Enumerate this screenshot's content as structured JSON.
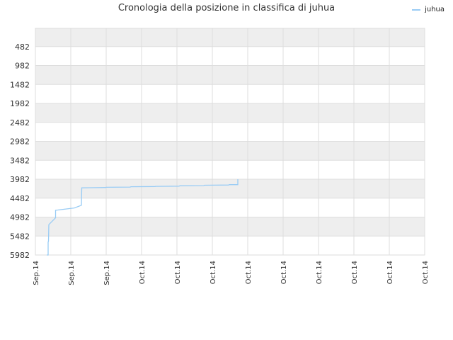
{
  "chart_data": {
    "type": "line",
    "title": "Cronologia della posizione in classifica di juhua",
    "legend": {
      "position": "top-right"
    },
    "series": [
      {
        "name": "juhua",
        "color": "#99ccf5",
        "points": [
          {
            "x": 0.32,
            "y": 5982
          },
          {
            "x": 0.36,
            "y": 5982
          },
          {
            "x": 0.36,
            "y": 5640
          },
          {
            "x": 0.37,
            "y": 5620
          },
          {
            "x": 0.38,
            "y": 5180
          },
          {
            "x": 0.57,
            "y": 5000
          },
          {
            "x": 0.57,
            "y": 4800
          },
          {
            "x": 0.63,
            "y": 4795
          },
          {
            "x": 1.1,
            "y": 4740
          },
          {
            "x": 1.3,
            "y": 4670
          },
          {
            "x": 1.31,
            "y": 4210
          },
          {
            "x": 1.98,
            "y": 4200
          },
          {
            "x": 2.0,
            "y": 4195
          },
          {
            "x": 2.68,
            "y": 4190
          },
          {
            "x": 2.7,
            "y": 4180
          },
          {
            "x": 3.38,
            "y": 4175
          },
          {
            "x": 3.4,
            "y": 4170
          },
          {
            "x": 4.06,
            "y": 4165
          },
          {
            "x": 4.08,
            "y": 4155
          },
          {
            "x": 4.76,
            "y": 4150
          },
          {
            "x": 4.78,
            "y": 4140
          },
          {
            "x": 5.46,
            "y": 4135
          },
          {
            "x": 5.48,
            "y": 4125
          },
          {
            "x": 5.72,
            "y": 4125
          },
          {
            "x": 5.72,
            "y": 3982
          }
        ]
      }
    ],
    "y_axis": {
      "ticks": [
        482,
        982,
        1482,
        1982,
        2482,
        2982,
        3482,
        3982,
        4482,
        4982,
        5482,
        5982
      ],
      "tick_labels": [
        "482",
        "982",
        "1482",
        "1982",
        "2482",
        "2982",
        "3482",
        "3982",
        "4482",
        "4982",
        "5482",
        "5982"
      ],
      "range": [
        0,
        5982
      ],
      "reversed": true
    },
    "x_axis": {
      "range": [
        0,
        11
      ],
      "tick_labels": [
        "Sep.14",
        "Sep.14",
        "Sep.14",
        "Oct.14",
        "Oct.14",
        "Oct.14",
        "Oct.14",
        "Oct.14",
        "Oct.14",
        "Oct.14",
        "Oct.14",
        "Oct.14"
      ],
      "label_rotation": -90
    },
    "grid": true,
    "band_colors": [
      "#eeeeee",
      "#ffffff"
    ],
    "grid_color": "#dddddd",
    "label_color": "#333333"
  }
}
